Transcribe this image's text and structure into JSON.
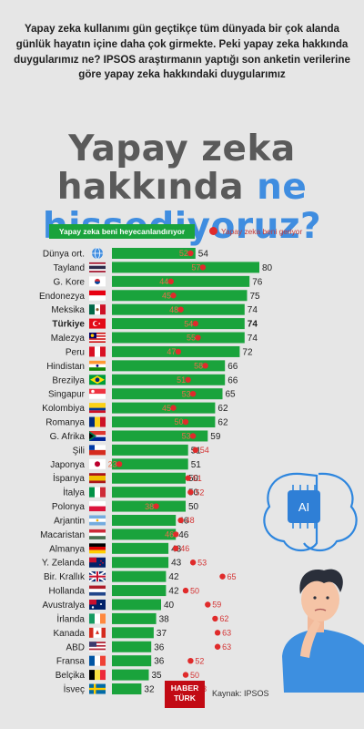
{
  "intro": "Yapay zeka kullanımı gün geçtikçe tüm dünyada bir çok alanda günlük hayatın içine daha çok girmekte. Peki yapay zeka hakkında duygularımız ne? IPSOS araştırmanın yaptığı son anketin verilerine göre yapay zeka hakkındaki duygularımız",
  "title": {
    "line1": "Yapay zeka",
    "line2a": "hakkında ",
    "line2b": "ne",
    "line3": "hissediyoruz?"
  },
  "legend": {
    "green": "Yapay zeka beni heyecanlandırıyor",
    "red": "Yapay zeka beni geriyor"
  },
  "colors": {
    "bar": "#1aa33c",
    "dot": "#e02b2b",
    "title_blue": "#3f8de0",
    "title_gray": "#5a5a5a",
    "background": "#e6e6e6"
  },
  "ai_chip_label": "AI",
  "footer": {
    "logo_line1": "HABER",
    "logo_line2": "TÜRK",
    "source": "Kaynak: IPSOS"
  },
  "chart_data": {
    "type": "bar",
    "orientation": "horizontal",
    "categories": [
      "Dünya ort.",
      "Tayland",
      "G. Kore",
      "Endonezya",
      "Meksika",
      "Türkiye",
      "Malezya",
      "Peru",
      "Hindistan",
      "Brezilya",
      "Singapur",
      "Kolombiya",
      "Romanya",
      "G. Afrika",
      "Şili",
      "Japonya",
      "İspanya",
      "İtalya",
      "Polonya",
      "Arjantin",
      "Macaristan",
      "Almanya",
      "Y. Zelanda",
      "Bir. Krallık",
      "Hollanda",
      "Avustralya",
      "İrlanda",
      "Kanada",
      "ABD",
      "Fransa",
      "Belçika",
      "İsveç"
    ],
    "highlight_category": "Türkiye",
    "series": [
      {
        "name": "Yapay zeka beni heyecanlandırıyor",
        "values": [
          54,
          80,
          76,
          75,
          74,
          74,
          74,
          72,
          66,
          66,
          65,
          62,
          62,
          59,
          51,
          51,
          50,
          50,
          50,
          46,
          46,
          43,
          43,
          42,
          42,
          40,
          38,
          37,
          36,
          36,
          35,
          32
        ]
      },
      {
        "name": "Yapay zeka beni geriyor",
        "values": [
          52,
          57,
          44,
          45,
          48,
          54,
          55,
          47,
          58,
          51,
          53,
          45,
          50,
          53,
          54,
          23,
          51,
          52,
          38,
          48,
          46,
          46,
          53,
          65,
          50,
          59,
          62,
          63,
          63,
          52,
          50,
          53
        ]
      }
    ],
    "flags": [
      "globe",
      "th",
      "kr",
      "id",
      "mx",
      "tr",
      "my",
      "pe",
      "in",
      "br",
      "sg",
      "co",
      "ro",
      "za",
      "cl",
      "jp",
      "es",
      "it",
      "pl",
      "ar",
      "hu",
      "de",
      "nz",
      "gb",
      "nl",
      "au",
      "ie",
      "ca",
      "us",
      "fr",
      "be",
      "se"
    ]
  }
}
